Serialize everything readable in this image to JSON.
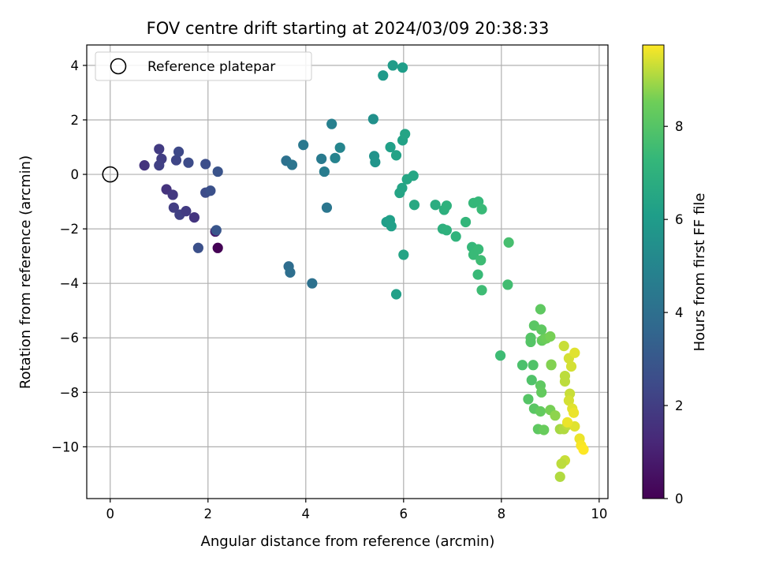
{
  "chart_data": {
    "type": "scatter",
    "title": "FOV centre drift starting at 2024/03/09 20:38:33",
    "xlabel": "Angular distance from reference (arcmin)",
    "ylabel": "Rotation from reference (arcmin)",
    "xlim": [
      -0.48,
      10.18
    ],
    "ylim": [
      -11.9,
      4.75
    ],
    "xticks": [
      0,
      2,
      4,
      6,
      8,
      10
    ],
    "yticks": [
      4,
      2,
      0,
      -2,
      -4,
      -6,
      -8,
      -10
    ],
    "xtick_labels": [
      "0",
      "2",
      "4",
      "6",
      "8",
      "10"
    ],
    "ytick_labels": [
      "4",
      "2",
      "0",
      "−2",
      "−4",
      "−6",
      "−8",
      "−10"
    ],
    "grid": true,
    "legend": {
      "label": "Reference platepar",
      "position": "top-left"
    },
    "reference_point": {
      "x": 0,
      "y": 0
    },
    "colorbar": {
      "label": "Hours from first FF file",
      "min": 0,
      "max": 9.75,
      "ticks": [
        0,
        2,
        4,
        6,
        8
      ],
      "tick_labels": [
        "0",
        "2",
        "4",
        "6",
        "8"
      ],
      "colormap": "viridis"
    },
    "points": [
      {
        "x": 2.2,
        "y": -2.7,
        "t": 0.05
      },
      {
        "x": 2.15,
        "y": -2.1,
        "t": 0.8
      },
      {
        "x": 0.7,
        "y": 0.33,
        "t": 1.6
      },
      {
        "x": 1.0,
        "y": 0.93,
        "t": 1.9
      },
      {
        "x": 1.05,
        "y": 0.57,
        "t": 2.0
      },
      {
        "x": 1.0,
        "y": 0.33,
        "t": 2.1
      },
      {
        "x": 1.35,
        "y": 0.52,
        "t": 2.3
      },
      {
        "x": 1.4,
        "y": 0.83,
        "t": 2.4
      },
      {
        "x": 1.6,
        "y": 0.43,
        "t": 2.5
      },
      {
        "x": 1.95,
        "y": 0.38,
        "t": 2.6
      },
      {
        "x": 2.2,
        "y": 0.1,
        "t": 2.8
      },
      {
        "x": 1.15,
        "y": -0.55,
        "t": 1.6
      },
      {
        "x": 1.28,
        "y": -0.75,
        "t": 1.8
      },
      {
        "x": 1.3,
        "y": -1.22,
        "t": 2.0
      },
      {
        "x": 1.42,
        "y": -1.48,
        "t": 2.1
      },
      {
        "x": 1.55,
        "y": -1.35,
        "t": 1.9
      },
      {
        "x": 1.72,
        "y": -1.58,
        "t": 1.7
      },
      {
        "x": 1.95,
        "y": -0.67,
        "t": 2.5
      },
      {
        "x": 2.05,
        "y": -0.6,
        "t": 2.7
      },
      {
        "x": 2.17,
        "y": -2.05,
        "t": 2.9
      },
      {
        "x": 1.8,
        "y": -2.7,
        "t": 2.7
      },
      {
        "x": 3.6,
        "y": 0.5,
        "t": 4.1
      },
      {
        "x": 3.72,
        "y": 0.35,
        "t": 4.2
      },
      {
        "x": 3.95,
        "y": 1.08,
        "t": 4.4
      },
      {
        "x": 4.32,
        "y": 0.57,
        "t": 4.5
      },
      {
        "x": 4.38,
        "y": 0.1,
        "t": 4.6
      },
      {
        "x": 4.53,
        "y": 1.85,
        "t": 4.8
      },
      {
        "x": 4.6,
        "y": 0.6,
        "t": 4.9
      },
      {
        "x": 4.7,
        "y": 0.98,
        "t": 5.0
      },
      {
        "x": 4.43,
        "y": -1.22,
        "t": 4.3
      },
      {
        "x": 3.65,
        "y": -3.38,
        "t": 3.9
      },
      {
        "x": 3.68,
        "y": -3.6,
        "t": 4.0
      },
      {
        "x": 4.13,
        "y": -4.0,
        "t": 4.1
      },
      {
        "x": 5.38,
        "y": 2.03,
        "t": 5.5
      },
      {
        "x": 5.4,
        "y": 0.67,
        "t": 5.6
      },
      {
        "x": 5.42,
        "y": 0.45,
        "t": 5.7
      },
      {
        "x": 5.58,
        "y": 3.63,
        "t": 5.9
      },
      {
        "x": 5.78,
        "y": 4.0,
        "t": 6.0
      },
      {
        "x": 5.98,
        "y": 3.92,
        "t": 6.1
      },
      {
        "x": 5.73,
        "y": 1.0,
        "t": 6.2
      },
      {
        "x": 5.85,
        "y": 0.7,
        "t": 6.3
      },
      {
        "x": 5.98,
        "y": 1.25,
        "t": 6.3
      },
      {
        "x": 6.03,
        "y": 1.48,
        "t": 6.4
      },
      {
        "x": 6.07,
        "y": -0.18,
        "t": 6.5
      },
      {
        "x": 6.2,
        "y": -0.05,
        "t": 6.5
      },
      {
        "x": 5.97,
        "y": -0.5,
        "t": 6.4
      },
      {
        "x": 5.92,
        "y": -0.68,
        "t": 6.4
      },
      {
        "x": 5.65,
        "y": -1.75,
        "t": 6.1
      },
      {
        "x": 5.72,
        "y": -1.68,
        "t": 6.2
      },
      {
        "x": 5.75,
        "y": -1.9,
        "t": 6.2
      },
      {
        "x": 6.0,
        "y": -2.95,
        "t": 6.4
      },
      {
        "x": 5.85,
        "y": -4.4,
        "t": 6.2
      },
      {
        "x": 6.22,
        "y": -1.12,
        "t": 6.6
      },
      {
        "x": 6.65,
        "y": -1.12,
        "t": 6.8
      },
      {
        "x": 6.83,
        "y": -1.3,
        "t": 6.9
      },
      {
        "x": 6.88,
        "y": -1.15,
        "t": 7.0
      },
      {
        "x": 6.8,
        "y": -2.0,
        "t": 6.9
      },
      {
        "x": 6.88,
        "y": -2.05,
        "t": 7.0
      },
      {
        "x": 7.07,
        "y": -2.28,
        "t": 7.1
      },
      {
        "x": 7.27,
        "y": -1.75,
        "t": 7.2
      },
      {
        "x": 7.43,
        "y": -1.05,
        "t": 7.3
      },
      {
        "x": 7.53,
        "y": -1.0,
        "t": 7.3
      },
      {
        "x": 7.6,
        "y": -1.28,
        "t": 7.4
      },
      {
        "x": 7.4,
        "y": -2.67,
        "t": 7.3
      },
      {
        "x": 7.43,
        "y": -2.95,
        "t": 7.4
      },
      {
        "x": 7.53,
        "y": -2.75,
        "t": 7.4
      },
      {
        "x": 7.58,
        "y": -3.15,
        "t": 7.5
      },
      {
        "x": 7.52,
        "y": -3.68,
        "t": 7.4
      },
      {
        "x": 7.6,
        "y": -4.25,
        "t": 7.5
      },
      {
        "x": 8.15,
        "y": -2.5,
        "t": 7.7
      },
      {
        "x": 8.13,
        "y": -4.05,
        "t": 7.6
      },
      {
        "x": 7.98,
        "y": -6.65,
        "t": 7.5
      },
      {
        "x": 8.43,
        "y": -7.0,
        "t": 7.8
      },
      {
        "x": 8.65,
        "y": -7.0,
        "t": 7.9
      },
      {
        "x": 8.62,
        "y": -7.55,
        "t": 7.9
      },
      {
        "x": 8.55,
        "y": -8.25,
        "t": 8.0
      },
      {
        "x": 8.8,
        "y": -4.95,
        "t": 8.2
      },
      {
        "x": 8.67,
        "y": -5.55,
        "t": 8.1
      },
      {
        "x": 8.82,
        "y": -5.7,
        "t": 8.2
      },
      {
        "x": 8.6,
        "y": -6.0,
        "t": 8.0
      },
      {
        "x": 8.6,
        "y": -6.15,
        "t": 8.0
      },
      {
        "x": 8.83,
        "y": -6.1,
        "t": 8.3
      },
      {
        "x": 8.87,
        "y": -6.05,
        "t": 8.4
      },
      {
        "x": 8.92,
        "y": -6.02,
        "t": 8.5
      },
      {
        "x": 9.0,
        "y": -5.95,
        "t": 8.6
      },
      {
        "x": 8.8,
        "y": -7.75,
        "t": 8.2
      },
      {
        "x": 8.82,
        "y": -8.0,
        "t": 8.3
      },
      {
        "x": 8.67,
        "y": -8.6,
        "t": 8.1
      },
      {
        "x": 8.8,
        "y": -8.7,
        "t": 8.3
      },
      {
        "x": 8.75,
        "y": -9.35,
        "t": 8.2
      },
      {
        "x": 8.87,
        "y": -9.38,
        "t": 8.4
      },
      {
        "x": 9.02,
        "y": -6.98,
        "t": 8.7
      },
      {
        "x": 9.0,
        "y": -8.65,
        "t": 8.6
      },
      {
        "x": 9.1,
        "y": -8.85,
        "t": 8.8
      },
      {
        "x": 9.2,
        "y": -9.35,
        "t": 9.0
      },
      {
        "x": 9.28,
        "y": -9.35,
        "t": 9.1
      },
      {
        "x": 9.35,
        "y": -9.2,
        "t": 9.2
      },
      {
        "x": 9.28,
        "y": -6.3,
        "t": 9.3
      },
      {
        "x": 9.38,
        "y": -6.75,
        "t": 9.4
      },
      {
        "x": 9.43,
        "y": -7.05,
        "t": 9.4
      },
      {
        "x": 9.5,
        "y": -6.55,
        "t": 9.5
      },
      {
        "x": 9.3,
        "y": -7.4,
        "t": 9.2
      },
      {
        "x": 9.3,
        "y": -7.6,
        "t": 9.2
      },
      {
        "x": 9.4,
        "y": -8.05,
        "t": 9.3
      },
      {
        "x": 9.38,
        "y": -8.3,
        "t": 9.4
      },
      {
        "x": 9.45,
        "y": -8.6,
        "t": 9.5
      },
      {
        "x": 9.48,
        "y": -8.75,
        "t": 9.6
      },
      {
        "x": 9.5,
        "y": -9.25,
        "t": 9.5
      },
      {
        "x": 9.35,
        "y": -9.1,
        "t": 9.6
      },
      {
        "x": 9.6,
        "y": -9.7,
        "t": 9.6
      },
      {
        "x": 9.63,
        "y": -9.95,
        "t": 9.7
      },
      {
        "x": 9.68,
        "y": -10.1,
        "t": 9.75
      },
      {
        "x": 9.3,
        "y": -10.5,
        "t": 9.3
      },
      {
        "x": 9.23,
        "y": -10.62,
        "t": 9.2
      },
      {
        "x": 9.2,
        "y": -11.1,
        "t": 9.1
      },
      {
        "x": 9.02,
        "y": -7.0,
        "t": 8.7
      }
    ]
  }
}
